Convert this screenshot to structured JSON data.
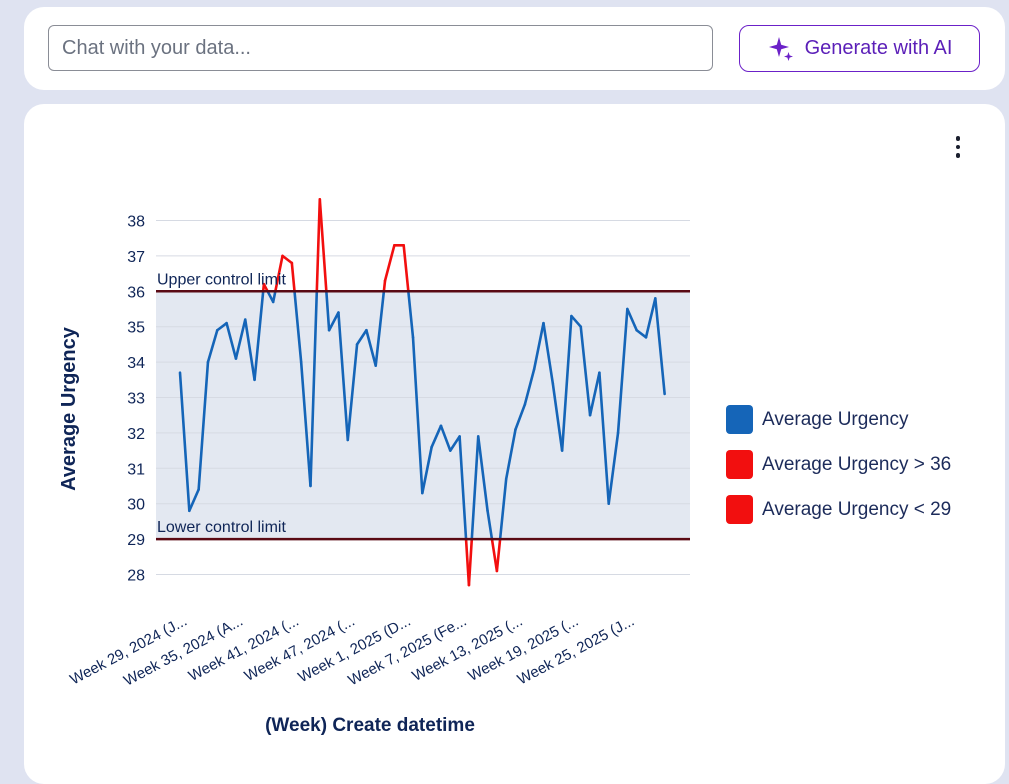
{
  "search": {
    "placeholder": "Chat with your data...",
    "value": ""
  },
  "toolbar": {
    "generate_label": "Generate with AI",
    "generate_icon": "sparkle-icon",
    "menu_icon": "more-vertical-icon"
  },
  "colors": {
    "series": "#1565b8",
    "highlight": "#f20f0f",
    "control_line": "#5a0a14",
    "band_fill": "#e3e8f1",
    "accent": "#6b21c8"
  },
  "legend": {
    "placement": "right",
    "items": [
      {
        "label": "Average Urgency",
        "color": "#1565b8"
      },
      {
        "label": "Average Urgency > 36",
        "color": "#f20f0f"
      },
      {
        "label": "Average Urgency < 29",
        "color": "#f20f0f"
      }
    ]
  },
  "chart_data": {
    "type": "line",
    "title": "",
    "xlabel": "(Week) Create datetime",
    "ylabel": "Average Urgency",
    "ylim": [
      27.5,
      38.5
    ],
    "yticks": [
      28,
      29,
      30,
      31,
      32,
      33,
      34,
      35,
      36,
      37,
      38
    ],
    "grid": true,
    "x_tick_labels": [
      "Week 29, 2024 (J...",
      "Week 35, 2024 (A...",
      "Week 41, 2024 (...",
      "Week 47, 2024 (...",
      "Week 1, 2025 (D...",
      "Week 7, 2025 (Fe...",
      "Week 13, 2025 (...",
      "Week 19, 2025 (...",
      "Week 25, 2025 (J..."
    ],
    "x_tick_every": 6,
    "control_limits": {
      "upper": {
        "label": "Upper control limit",
        "value": 36
      },
      "lower": {
        "label": "Lower control limit",
        "value": 29
      }
    },
    "series": [
      {
        "name": "Average Urgency",
        "values": [
          33.7,
          29.8,
          30.4,
          34.0,
          34.9,
          35.1,
          34.1,
          35.2,
          33.5,
          36.2,
          35.7,
          37.0,
          36.8,
          34.0,
          30.5,
          38.6,
          34.9,
          35.4,
          31.8,
          34.5,
          34.9,
          33.9,
          36.3,
          37.3,
          37.3,
          34.7,
          30.3,
          31.6,
          32.2,
          31.5,
          31.9,
          27.7,
          31.9,
          29.8,
          28.1,
          30.7,
          32.1,
          32.8,
          33.8,
          35.1,
          33.4,
          31.5,
          35.3,
          35.0,
          32.5,
          33.7,
          30.0,
          32.0,
          35.5,
          34.9,
          34.7,
          35.8,
          33.1
        ]
      }
    ]
  }
}
